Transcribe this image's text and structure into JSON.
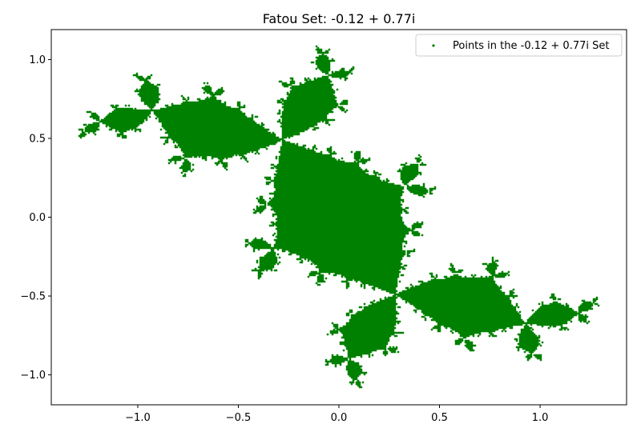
{
  "chart_data": {
    "type": "scatter",
    "title": "Fatou Set: -0.12 + 0.77i",
    "xlabel": "",
    "ylabel": "",
    "xlim": [
      -1.43,
      1.43
    ],
    "ylim": [
      -1.19,
      1.19
    ],
    "xticks": [
      -1.0,
      -0.5,
      0.0,
      0.5,
      1.0
    ],
    "xtick_labels": [
      "−1.0",
      "−0.5",
      "0.0",
      "0.5",
      "1.0"
    ],
    "yticks": [
      -1.0,
      -0.5,
      0.0,
      0.5,
      1.0
    ],
    "ytick_labels": [
      "−1.0",
      "−0.5",
      "0.0",
      "0.5",
      "1.0"
    ],
    "grid": false,
    "legend_position": "upper right",
    "c": {
      "re": -0.12,
      "im": 0.77
    },
    "series": [
      {
        "name": "Points in the -0.12 + 0.77i Set",
        "color": "#008000",
        "marker": "dot"
      }
    ]
  }
}
